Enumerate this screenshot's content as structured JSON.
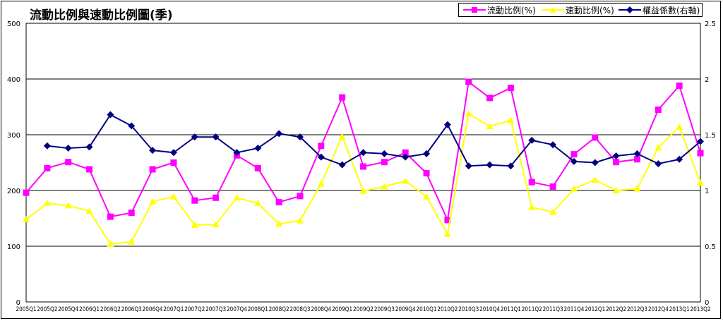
{
  "chart_data": {
    "type": "line",
    "title": "流動比例與速動比例圖(季)",
    "categories": [
      "2005Q1",
      "2005Q2",
      "2005Q4",
      "2006Q1",
      "2006Q2",
      "2006Q3",
      "2006Q4",
      "2007Q1",
      "2007Q2",
      "2007Q3",
      "2007Q4",
      "2008Q1",
      "2008Q2",
      "2008Q3",
      "2008Q4",
      "2009Q1",
      "2009Q2",
      "2009Q3",
      "2009Q4",
      "2010Q1",
      "2010Q2",
      "2010Q3",
      "2010Q4",
      "2011Q1",
      "2011Q2",
      "2011Q3",
      "2011Q4",
      "2012Q1",
      "2012Q2",
      "2012Q3",
      "2012Q4",
      "2013Q1",
      "2013Q2"
    ],
    "category_labels": [
      "2005Q1",
      "2005Q2",
      "2005Q4",
      "2006Q1",
      "2006Q2",
      "2006Q3",
      "2006Q4",
      "2007Q1",
      "2007Q2",
      "2007Q3",
      "2007Q4",
      "2008Q1",
      "2008Q2",
      "2008Q3",
      "2008Q4",
      "2009Q1",
      "2009Q2",
      "2009Q3",
      "2009Q4",
      "2010Q1",
      "2010Q2",
      "2010Q3",
      "2010Q4",
      "2011Q1",
      "2011Q2",
      "2011Q3",
      "2011Q4",
      "2012Q1",
      "2012Q2",
      "2012Q3",
      "2012Q4",
      "2013Q1",
      "2013Q2"
    ],
    "series": [
      {
        "name": "流動比例(%)",
        "axis": "left",
        "color": "#ff00ff",
        "marker": "square",
        "values": [
          196,
          240,
          251,
          238,
          153,
          160,
          238,
          250,
          182,
          187,
          263,
          240,
          179,
          190,
          280,
          367,
          243,
          251,
          268,
          231,
          147,
          395,
          366,
          384,
          215,
          207,
          265,
          295,
          251,
          256,
          345,
          388,
          267
        ]
      },
      {
        "name": "速動比例(%)",
        "axis": "left",
        "color": "#ffff00",
        "marker": "triangle",
        "values": [
          148,
          177,
          173,
          163,
          104,
          108,
          180,
          189,
          138,
          139,
          187,
          177,
          140,
          146,
          212,
          297,
          199,
          207,
          217,
          189,
          122,
          338,
          315,
          326,
          170,
          161,
          203,
          219,
          200,
          203,
          277,
          314,
          214
        ]
      },
      {
        "name": "權益係數(右軸)",
        "axis": "right",
        "color": "#000080",
        "marker": "diamond",
        "values": [
          null,
          1.4,
          1.38,
          1.39,
          1.68,
          1.58,
          1.36,
          1.34,
          1.48,
          1.48,
          1.34,
          1.38,
          1.51,
          1.48,
          1.3,
          1.23,
          1.34,
          1.33,
          1.3,
          1.33,
          1.59,
          1.22,
          1.23,
          1.22,
          1.45,
          1.41,
          1.26,
          1.25,
          1.31,
          1.33,
          1.24,
          1.28,
          1.44
        ]
      }
    ],
    "ylim": [
      0,
      500
    ],
    "yticks": [
      "0",
      "100",
      "200",
      "300",
      "400",
      "500"
    ],
    "y2lim": [
      0,
      2.5
    ],
    "y2ticks": [
      "0",
      "0.5",
      "1",
      "1.5",
      "2",
      "2.5"
    ],
    "grid": true,
    "legend_position": "top-right"
  }
}
